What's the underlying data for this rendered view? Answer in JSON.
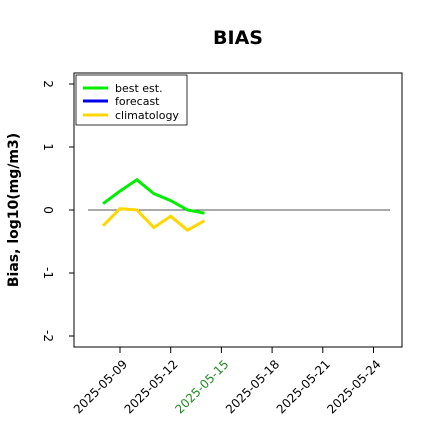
{
  "chart_data": {
    "type": "line",
    "title": "BIAS",
    "xlabel": "",
    "ylabel": "Bias, log10(mg/m3)",
    "x_ticks": [
      "2025-05-09",
      "2025-05-12",
      "2025-05-15",
      "2025-05-18",
      "2025-05-21",
      "2025-05-24"
    ],
    "highlight_tick": "2025-05-15",
    "xlim": [
      "2025-05-07",
      "2025-05-26"
    ],
    "ylim": [
      -2.1,
      2.1
    ],
    "y_ticks": [
      -2,
      -1,
      0,
      1,
      2
    ],
    "grid": false,
    "legend_position": "top-left",
    "reference_line_y": 0,
    "series": [
      {
        "name": "best est.",
        "color": "#00ee00",
        "x": [
          "2025-05-08",
          "2025-05-09",
          "2025-05-10",
          "2025-05-11",
          "2025-05-12",
          "2025-05-13",
          "2025-05-14"
        ],
        "values": [
          0.1,
          0.3,
          0.48,
          0.26,
          0.15,
          0.0,
          -0.05
        ]
      },
      {
        "name": "forecast",
        "color": "#0000ee",
        "x": [],
        "values": []
      },
      {
        "name": "climatology",
        "color": "#ffd700",
        "x": [
          "2025-05-08",
          "2025-05-09",
          "2025-05-10",
          "2025-05-11",
          "2025-05-12",
          "2025-05-13",
          "2025-05-14"
        ],
        "values": [
          -0.25,
          0.02,
          0.0,
          -0.28,
          -0.1,
          -0.32,
          -0.17
        ]
      }
    ]
  },
  "colors": {
    "axis": "#000000",
    "reference_line": "#555555",
    "highlight_tick": "#228b22"
  }
}
